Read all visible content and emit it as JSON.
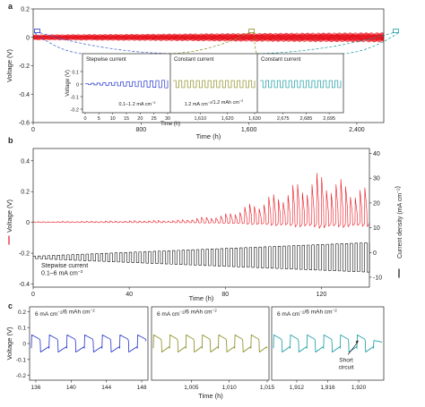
{
  "colors": {
    "red": "#e8141e",
    "blue": "#2233cc",
    "olive": "#8a8a1e",
    "teal": "#159aa0",
    "black": "#111111",
    "inset_dash": "#3355cc",
    "inset_dash_olive": "#8a8a1e",
    "inset_dash_teal": "#159aa0"
  },
  "chart_data": [
    {
      "id": "a",
      "panel_label": "a",
      "type": "line",
      "xlabel": "Time (h)",
      "ylabel": "Voltage (V)",
      "xlim": [
        0,
        2600
      ],
      "ylim": [
        -0.6,
        0.2
      ],
      "xticks": [
        0,
        800,
        1600,
        2400
      ],
      "xtick_labels": [
        "0",
        "800",
        "1,600",
        "2,400"
      ],
      "yticks": [
        -0.6,
        -0.4,
        -0.2,
        0,
        0.2
      ],
      "ytick_labels": [
        "-0.6",
        "-0.4",
        "-0.2",
        "0",
        "0.2"
      ],
      "series": [
        {
          "color": "red",
          "x": [
            0,
            2600
          ],
          "amplitude_profile": {
            "x": [
              0,
              800,
              1600,
              2600
            ],
            "amp": [
              0.02,
              0.024,
              0.03,
              0.035
            ]
          }
        }
      ],
      "highlight_x": [
        30,
        1620,
        2690
      ],
      "insets": [
        {
          "title": "Stepwise current",
          "caption": "0.1–1.2 mA cm−2",
          "color": "blue",
          "xlim": [
            0,
            30
          ],
          "xticks": [
            0,
            5,
            10,
            15,
            20,
            25,
            30
          ],
          "xtick_labels": [
            "0",
            "5",
            "10",
            "15",
            "20",
            "25",
            "30"
          ],
          "waveform": "square",
          "cycles": 14,
          "amplitude_ramp": [
            0.004,
            0.03
          ]
        },
        {
          "title": "Constant current",
          "caption": "1.2 mA cm−2/1.2 mAh cm−2",
          "color": "olive",
          "xlim": [
            1600,
            1630
          ],
          "xticks": [
            1610,
            1620,
            1630
          ],
          "xtick_labels": [
            "1,610",
            "1,620",
            "1,630"
          ],
          "waveform": "square",
          "cycles": 14,
          "amplitude_ramp": [
            0.028,
            0.028
          ]
        },
        {
          "title": "Constant current",
          "caption": "",
          "color": "teal",
          "xlim": [
            2665,
            2700
          ],
          "xticks": [
            2675,
            2685,
            2695
          ],
          "xtick_labels": [
            "2,675",
            "2,685",
            "2,695"
          ],
          "waveform": "square",
          "cycles": 14,
          "amplitude_ramp": [
            0.028,
            0.028
          ]
        }
      ],
      "inset_ylabel": "Voltage (V)",
      "inset_xlabel": "Time (h)",
      "inset_ylim": [
        -0.2,
        0.1
      ],
      "inset_yticks": [
        -0.2,
        -0.1,
        0,
        0.1
      ],
      "inset_ytick_labels": [
        "-0.2",
        "-0.1",
        "0",
        "0.1"
      ]
    },
    {
      "id": "b",
      "panel_label": "b",
      "type": "line",
      "xlabel": "Time (h)",
      "ylabel": "Voltage (V)",
      "y2label": "Current density (mA cm−2)",
      "xlim": [
        0,
        140
      ],
      "ylim": [
        -0.42,
        0.48
      ],
      "xticks": [
        0,
        40,
        80,
        120
      ],
      "xtick_labels": [
        "0",
        "40",
        "80",
        "120"
      ],
      "yticks": [
        -0.4,
        -0.2,
        0,
        0.2,
        0.4
      ],
      "ytick_labels": [
        "-0.4",
        "-0.2",
        "0",
        "0.2",
        "0.4"
      ],
      "y2lim": [
        -14,
        42
      ],
      "y2ticks": [
        -10,
        0,
        10,
        20,
        30,
        40
      ],
      "y2tick_labels": [
        "-10",
        "0",
        "10",
        "20",
        "30",
        "40"
      ],
      "annotation": "Stepwise current\n0.1–6 mA cm−2",
      "series": [
        {
          "color": "red",
          "axis": "left",
          "cycles": 70,
          "spike_profile": {
            "x": [
              0,
              60,
              80,
              100,
              120,
              140
            ],
            "amp": [
              0.005,
              0.015,
              0.05,
              0.18,
              0.33,
              0.22
            ]
          }
        },
        {
          "color": "black",
          "axis": "right",
          "cycles": 70,
          "center": -2,
          "amplitude_profile": {
            "x": [
              0,
              140
            ],
            "amp": [
              0.5,
              6
            ]
          }
        }
      ]
    },
    {
      "id": "c",
      "panel_label": "c",
      "type": "line",
      "ylabel": "Voltage (V)",
      "xlabel": "Time (h)",
      "ylim": [
        -0.23,
        0.23
      ],
      "yticks": [
        -0.2,
        -0.1,
        0,
        0.1,
        0.2
      ],
      "ytick_labels": [
        "-0.2",
        "-0.1",
        "0",
        "0.1",
        "0.2"
      ],
      "subpanels": [
        {
          "title": "6 mA cm−2/6 mAh cm−2",
          "color": "blue",
          "xlim": [
            135.5,
            148.5
          ],
          "xticks": [
            136,
            140,
            144,
            148
          ],
          "xtick_labels": [
            "136",
            "140",
            "144",
            "148"
          ],
          "cycles": 6.5,
          "amp": 0.06
        },
        {
          "title": "6 mA cm−2/6 mAh cm−2",
          "color": "olive",
          "xlim": [
            1000,
            1015
          ],
          "xticks": [
            1005,
            1010,
            1015
          ],
          "xtick_labels": [
            "1,005",
            "1,010",
            "1,015"
          ],
          "cycles": 7,
          "amp": 0.06
        },
        {
          "title": "6 mA cm−2/6 mAh cm−2",
          "color": "teal",
          "xlim": [
            1909,
            1923
          ],
          "xticks": [
            1912,
            1916,
            1920
          ],
          "xtick_labels": [
            "1,912",
            "1,916",
            "1,920"
          ],
          "cycles": 6.5,
          "amp": 0.06,
          "short_circuit_at": 1920,
          "annotation": "Short\ncircuit"
        }
      ]
    }
  ]
}
